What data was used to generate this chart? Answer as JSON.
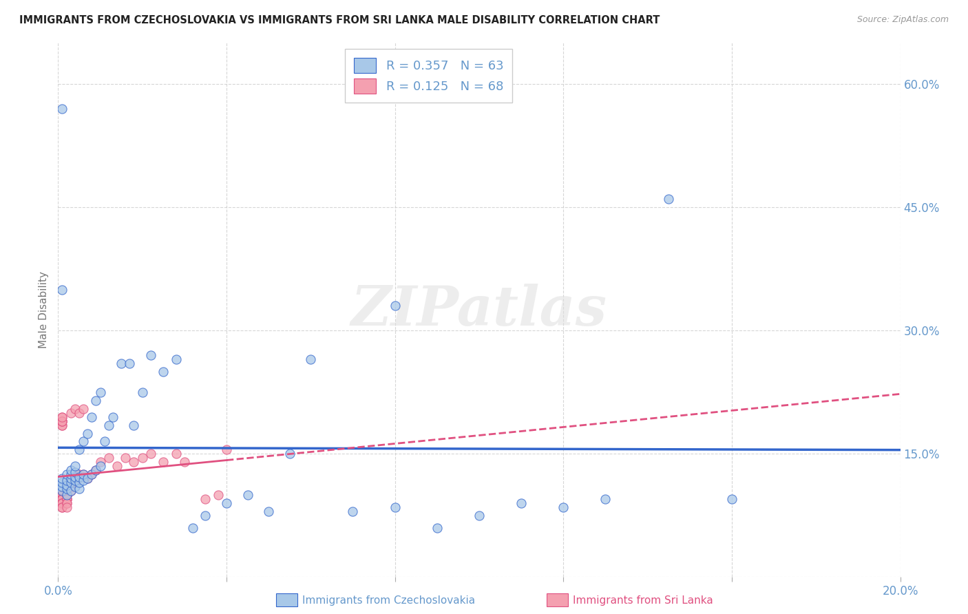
{
  "title": "IMMIGRANTS FROM CZECHOSLOVAKIA VS IMMIGRANTS FROM SRI LANKA MALE DISABILITY CORRELATION CHART",
  "source": "Source: ZipAtlas.com",
  "ylabel_label": "Male Disability",
  "xlim": [
    0.0,
    0.2
  ],
  "ylim": [
    0.0,
    0.65
  ],
  "legend_r1": "R = 0.357",
  "legend_n1": "N = 63",
  "legend_r2": "R = 0.125",
  "legend_n2": "N = 68",
  "color_blue": "#A8C8E8",
  "color_pink": "#F4A0B0",
  "line_color_blue": "#3366CC",
  "line_color_pink": "#E05080",
  "watermark_text": "ZIPatlas",
  "background_color": "#FFFFFF",
  "grid_color": "#CCCCCC",
  "title_color": "#222222",
  "tick_color": "#6699CC",
  "legend_label1": "Immigrants from Czechoslovakia",
  "legend_label2": "Immigrants from Sri Lanka",
  "blue_x": [
    0.001,
    0.001,
    0.001,
    0.001,
    0.002,
    0.002,
    0.002,
    0.002,
    0.002,
    0.003,
    0.003,
    0.003,
    0.003,
    0.003,
    0.004,
    0.004,
    0.004,
    0.004,
    0.004,
    0.005,
    0.005,
    0.005,
    0.005,
    0.006,
    0.006,
    0.006,
    0.007,
    0.007,
    0.008,
    0.008,
    0.009,
    0.009,
    0.01,
    0.01,
    0.011,
    0.012,
    0.013,
    0.015,
    0.017,
    0.018,
    0.02,
    0.022,
    0.025,
    0.028,
    0.032,
    0.035,
    0.04,
    0.045,
    0.05,
    0.055,
    0.06,
    0.07,
    0.08,
    0.09,
    0.1,
    0.11,
    0.12,
    0.13,
    0.145,
    0.16,
    0.001,
    0.001,
    0.08
  ],
  "blue_y": [
    0.105,
    0.11,
    0.115,
    0.12,
    0.1,
    0.108,
    0.112,
    0.118,
    0.125,
    0.105,
    0.115,
    0.12,
    0.125,
    0.13,
    0.11,
    0.118,
    0.122,
    0.128,
    0.135,
    0.108,
    0.115,
    0.122,
    0.155,
    0.118,
    0.125,
    0.165,
    0.12,
    0.175,
    0.125,
    0.195,
    0.13,
    0.215,
    0.135,
    0.225,
    0.165,
    0.185,
    0.195,
    0.26,
    0.26,
    0.185,
    0.225,
    0.27,
    0.25,
    0.265,
    0.06,
    0.075,
    0.09,
    0.1,
    0.08,
    0.15,
    0.265,
    0.08,
    0.085,
    0.06,
    0.075,
    0.09,
    0.085,
    0.095,
    0.46,
    0.095,
    0.35,
    0.57,
    0.33
  ],
  "pink_x": [
    0.001,
    0.001,
    0.001,
    0.001,
    0.001,
    0.001,
    0.001,
    0.001,
    0.001,
    0.001,
    0.001,
    0.001,
    0.001,
    0.001,
    0.001,
    0.001,
    0.001,
    0.001,
    0.001,
    0.001,
    0.002,
    0.002,
    0.002,
    0.002,
    0.002,
    0.002,
    0.002,
    0.002,
    0.002,
    0.002,
    0.003,
    0.003,
    0.003,
    0.003,
    0.003,
    0.004,
    0.004,
    0.004,
    0.004,
    0.005,
    0.005,
    0.005,
    0.006,
    0.006,
    0.007,
    0.008,
    0.009,
    0.01,
    0.012,
    0.014,
    0.016,
    0.018,
    0.02,
    0.022,
    0.025,
    0.028,
    0.03,
    0.035,
    0.038,
    0.04,
    0.001,
    0.001,
    0.001,
    0.001,
    0.001,
    0.001,
    0.001,
    0.001
  ],
  "pink_y": [
    0.1,
    0.1,
    0.1,
    0.1,
    0.1,
    0.1,
    0.1,
    0.1,
    0.1,
    0.1,
    0.095,
    0.095,
    0.095,
    0.095,
    0.095,
    0.09,
    0.09,
    0.09,
    0.085,
    0.085,
    0.1,
    0.1,
    0.1,
    0.1,
    0.095,
    0.095,
    0.095,
    0.09,
    0.09,
    0.085,
    0.105,
    0.11,
    0.115,
    0.12,
    0.2,
    0.115,
    0.12,
    0.125,
    0.205,
    0.12,
    0.125,
    0.2,
    0.125,
    0.205,
    0.12,
    0.125,
    0.13,
    0.14,
    0.145,
    0.135,
    0.145,
    0.14,
    0.145,
    0.15,
    0.14,
    0.15,
    0.14,
    0.095,
    0.1,
    0.155,
    0.19,
    0.185,
    0.19,
    0.195,
    0.185,
    0.19,
    0.19,
    0.195
  ]
}
